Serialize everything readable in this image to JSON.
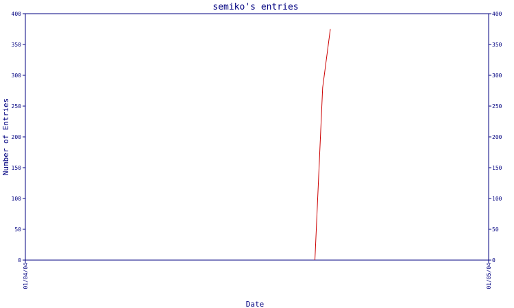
{
  "chart_data": {
    "type": "line",
    "title": "semiko's entries",
    "xlabel": "Date",
    "ylabel": "Number of Entries",
    "ylim": [
      0,
      400
    ],
    "y_ticks": [
      0,
      50,
      100,
      150,
      200,
      250,
      300,
      350,
      400
    ],
    "x_tick_labels": [
      "01/04/04",
      "01/05/04"
    ],
    "xlim": [
      "01/04/04",
      "01/05/04"
    ],
    "secondary_y_axis": true,
    "grid": false,
    "legend": "none",
    "line_color": "#cc0000",
    "axis_color": "#000080",
    "series": [
      {
        "x": [
          "01/04/04 15:00",
          "01/04/04 15:24",
          "01/04/04 15:48"
        ],
        "y": [
          0,
          280,
          375
        ]
      }
    ]
  }
}
